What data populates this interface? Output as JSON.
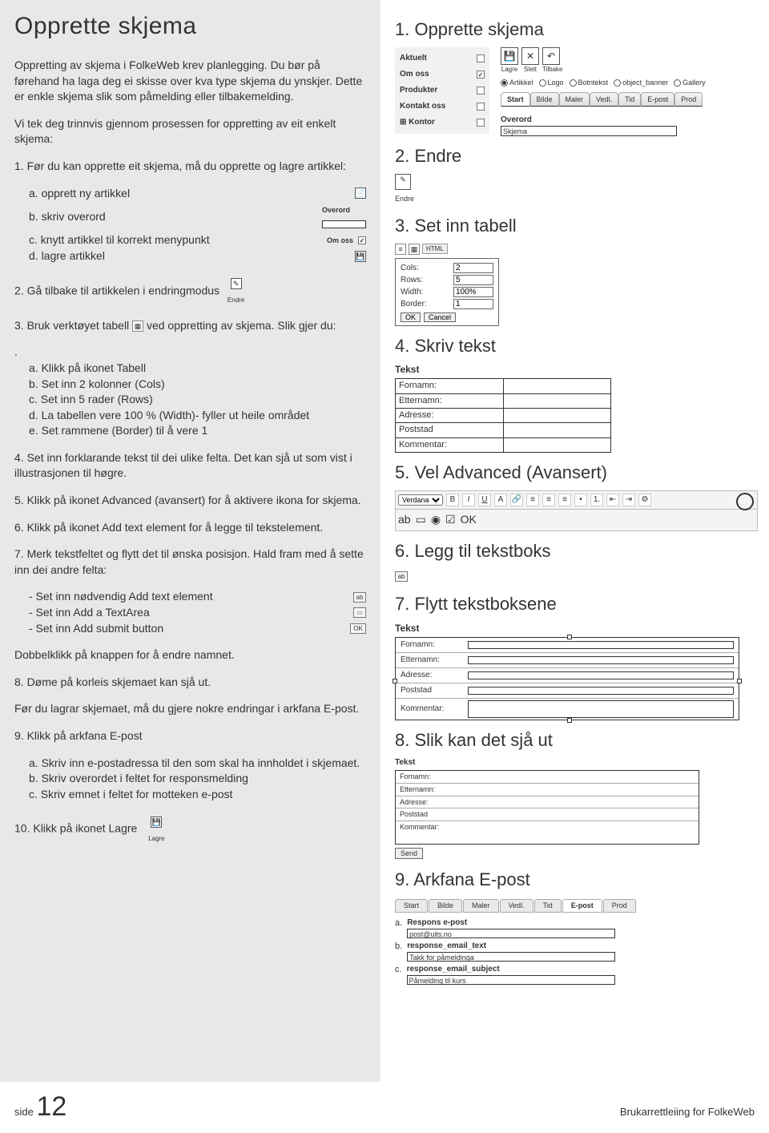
{
  "page_title": "Opprette skjema",
  "intro1": "Oppretting av skjema i FolkeWeb krev planlegging. Du bør på førehand ha laga deg ei skisse over kva type skjema du ynskjer. Dette er enkle skjema slik som påmelding eller tilbakemelding.",
  "intro2": "Vi tek deg trinnvis gjennom prosessen for oppretting av eit enkelt skjema:",
  "step1_lead": "1. Før du kan opprette eit skjema, må du opprette og lagre artikkel:",
  "step1_a": "a. opprett ny artikkel",
  "step1_b": "b. skriv overord",
  "step1_c": "c. knytt artikkel til korrekt menypunkt",
  "step1_d": "d. lagre artikkel",
  "overord_lbl": "Overord",
  "skjema_lbl": "Skjema",
  "omoss_lbl": "Om oss",
  "step2": "2. Gå tilbake til artikkelen i endringmodus",
  "endre_lbl": "Endre",
  "step3_a": "3. Bruk verktøyet tabell ",
  "step3_b": " ved oppretting av skjema. Slik gjer du:",
  "step3_1": "a. Klikk på ikonet Tabell",
  "step3_2": "b. Set inn 2 kolonner (Cols)",
  "step3_3": "c. Set inn 5 rader (Rows)",
  "step3_4": "d. La tabellen vere 100 % (Width)- fyller ut heile området",
  "step3_5": "e. Set rammene (Border) til å vere 1",
  "step4": "4. Set inn forklarande tekst til dei ulike felta. Det kan sjå ut som vist i illustrasjonen til høgre.",
  "step5": "5. Klikk på ikonet Advanced (avansert) for å aktivere ikona for skjema.",
  "step6": "6. Klikk på ikonet Add text element for å legge til tekstelement.",
  "step7": "7. Merk tekstfeltet og flytt det til ønska posisjon. Hald fram med å sette inn dei andre felta:",
  "step7_1": "- Set inn nødvendig Add text element",
  "step7_2": "- Set inn Add a TextArea",
  "step7_3": "- Set inn Add submit button",
  "dbl": "Dobbelklikk på knappen for å endre namnet.",
  "step8": "8. Døme på korleis skjemaet kan sjå ut.",
  "before9": "Før du lagrar skjemaet, må du gjere nokre endringar i arkfana E-post.",
  "step9_lead": "9. Klikk på arkfana E-post",
  "step9_a": "a. Skriv inn e-postadressa til den som skal ha innholdet i skjemaet.",
  "step9_b": "b. Skriv overordet i feltet for responsmelding",
  "step9_c": "c. Skriv emnet i feltet for motteken e-post",
  "step10": "10. Klikk på ikonet Lagre",
  "lagre_lbl": "Lagre",
  "r_h1": "1. Opprette skjema",
  "menu": {
    "items": [
      "Aktuelt",
      "Om oss",
      "Produkter",
      "Kontakt oss",
      "Kontor"
    ],
    "checked_index": 1,
    "expand_index": 4
  },
  "tool_icons": [
    "💾",
    "✕",
    "↶"
  ],
  "tool_labels": [
    "Lagre",
    "Slett",
    "Tilbake"
  ],
  "radios": [
    "Artikkel",
    "Logo",
    "Botntekst",
    "object_banner",
    "Gallery"
  ],
  "radio_on": 0,
  "tabs": [
    "Start",
    "Bilde",
    "Maler",
    "Vedl.",
    "Tid",
    "E-post",
    "Prod"
  ],
  "tab_active": 0,
  "overord_section": {
    "label1": "Overord",
    "label2": "Skjema"
  },
  "r_h2": "2. Endre",
  "r_h3": "3. Set inn tabell",
  "dialog": {
    "cols_lbl": "Cols:",
    "cols": "2",
    "rows_lbl": "Rows:",
    "rows": "5",
    "width_lbl": "Width:",
    "width": "100%",
    "border_lbl": "Border:",
    "border": "1",
    "ok": "OK",
    "cancel": "Cancel"
  },
  "r_h4": "4. Skriv tekst",
  "tekst_lbl": "Tekst",
  "form_labels": [
    "Fornamn:",
    "Etternamn:",
    "Adresse:",
    "Poststad",
    "Kommentar:"
  ],
  "r_h5": "5. Vel Advanced (Avansert)",
  "editor_font": "Verdana",
  "r_h6": "6. Legg til tekstboks",
  "r_h7": "7. Flytt tekstboksene",
  "r_h8": "8. Slik kan det sjå ut",
  "send_lbl": "Send",
  "r_h9": "9. Arkfana E-post",
  "epost_tabs": [
    "Start",
    "Bilde",
    "Maler",
    "Vedl.",
    "Tid",
    "E-post",
    "Prod"
  ],
  "epost_tab_active": 5,
  "epost": {
    "a_lbl": "Respons e-post",
    "a_val": "post@uits.no",
    "b_lbl": "response_email_text",
    "b_val": "Takk for påmeldinga",
    "c_lbl": "response_email_subject",
    "c_val": "Påmelding til kurs"
  },
  "footer_side": "side",
  "footer_page": "12",
  "footer_right": "Brukarrettleiing for FolkeWeb",
  "ok_btn_text": "OK",
  "colors": {
    "left_bg": "#e8e8e8",
    "right_bg": "#ffffff",
    "text": "#333333",
    "border": "#333333"
  }
}
